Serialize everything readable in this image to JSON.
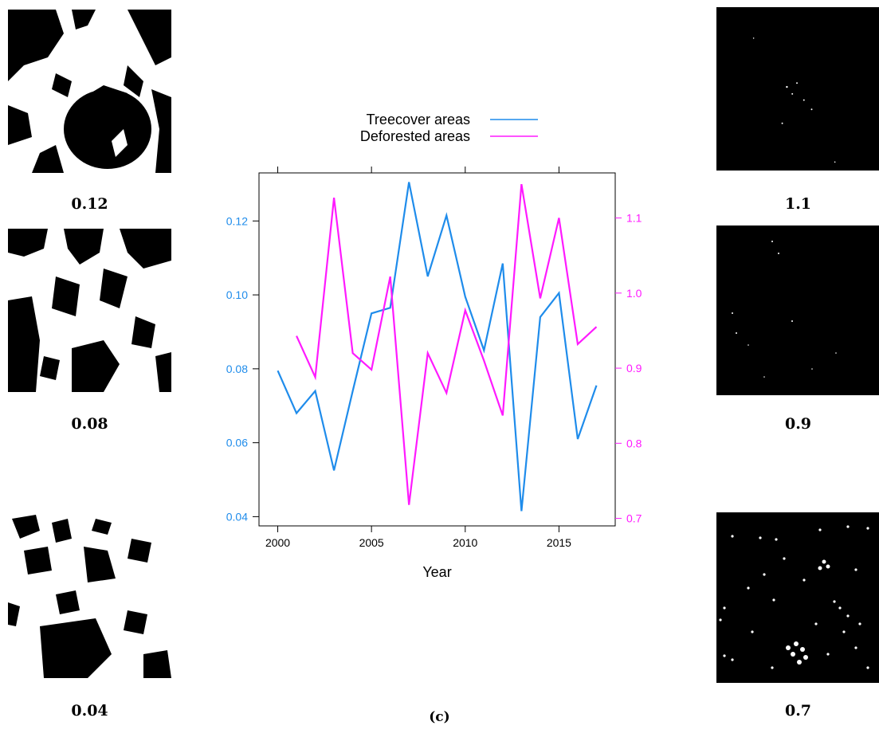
{
  "thumbnails": {
    "left": [
      {
        "label": "0.12",
        "style": "dense-forest-with-dark-mass"
      },
      {
        "label": "0.08",
        "style": "fragmented-forest"
      },
      {
        "label": "0.04",
        "style": "sparse-patchy-forest"
      }
    ],
    "right": [
      {
        "label": "1.1",
        "style": "very-sparse-white-specks"
      },
      {
        "label": "0.9",
        "style": "sparse-white-specks"
      },
      {
        "label": "0.7",
        "style": "white-dots-clusters"
      }
    ]
  },
  "caption": "(c)",
  "colors": {
    "treecover": "#1f8ceb",
    "deforested": "#ff1aff",
    "axis": "#000000"
  },
  "chart_data": {
    "type": "line",
    "title": "",
    "xlabel": "Year",
    "ylabel_left": "",
    "ylabel_right": "",
    "x_ticks": [
      2000,
      2005,
      2010,
      2015
    ],
    "y_left_ticks": [
      "0.04",
      "0.06",
      "0.08",
      "0.10",
      "0.12"
    ],
    "y_right_ticks": [
      "0.7",
      "0.8",
      "0.9",
      "1.0",
      "1.1"
    ],
    "xlim": [
      1999,
      2018
    ],
    "ylim_left": [
      0.0375,
      0.133
    ],
    "ylim_right": [
      0.69,
      1.16
    ],
    "legend_position": "top",
    "series": [
      {
        "name": "Treecover areas",
        "axis": "left",
        "x": [
          2000,
          2001,
          2002,
          2003,
          2004,
          2005,
          2006,
          2007,
          2008,
          2009,
          2010,
          2011,
          2012,
          2013,
          2014,
          2015,
          2016,
          2017
        ],
        "values": [
          0.0795,
          0.068,
          0.074,
          0.0525,
          0.074,
          0.095,
          0.0965,
          0.1305,
          0.105,
          0.1215,
          0.0995,
          0.085,
          0.1085,
          0.0415,
          0.094,
          0.1005,
          0.061,
          0.0755
        ]
      },
      {
        "name": "Deforested areas",
        "axis": "right",
        "x": [
          2001,
          2002,
          2003,
          2004,
          2005,
          2006,
          2007,
          2008,
          2009,
          2010,
          2011,
          2012,
          2013,
          2014,
          2015,
          2016,
          2017
        ],
        "values": [
          0.943,
          0.888,
          1.127,
          0.92,
          0.898,
          1.022,
          0.718,
          0.92,
          0.867,
          0.977,
          0.91,
          0.837,
          1.145,
          0.993,
          1.1,
          0.932,
          0.955
        ]
      }
    ]
  }
}
